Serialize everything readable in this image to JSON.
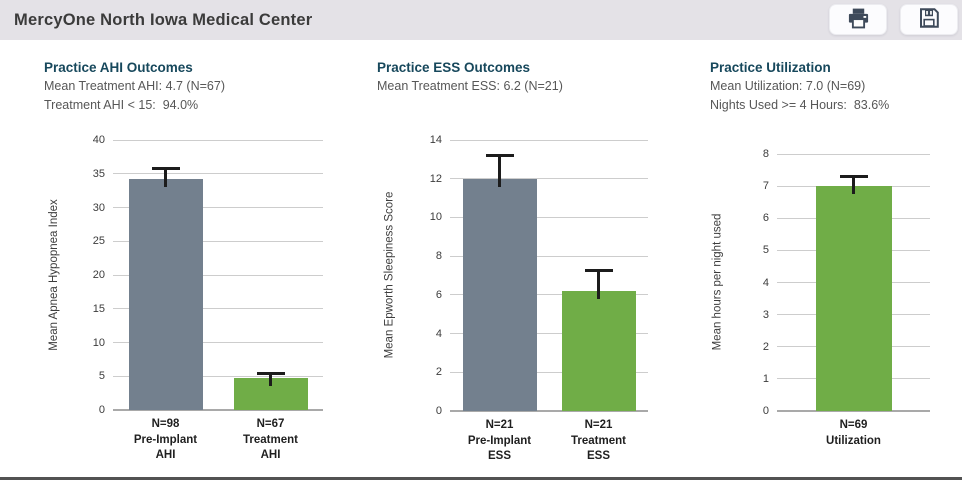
{
  "header": {
    "title": "MercyOne North Iowa Medical Center",
    "print_button": "print",
    "save_button": "save"
  },
  "panels": [
    {
      "title": "Practice AHI Outcomes",
      "subtitle1": "Mean Treatment AHI: 4.7 (N=67)",
      "subtitle2": "Treatment AHI < 15:  94.0%"
    },
    {
      "title": "Practice ESS Outcomes",
      "subtitle1": "Mean Treatment ESS: 6.2 (N=21)"
    },
    {
      "title": "Practice Utilization",
      "subtitle1": "Mean Utilization: 7.0 (N=69)",
      "subtitle2": "Nights Used >= 4 Hours:  83.6%"
    }
  ],
  "colors": {
    "header_bg": "#E4E2E7",
    "accent_navy": "#17485C",
    "bar_gray": "#73808E",
    "bar_green": "#70AD47",
    "gridline": "#CDCDCD",
    "error_bar": "#1C1C1C",
    "icon": "#3E4A5A"
  },
  "chart_data": [
    {
      "type": "bar",
      "title": "Practice AHI Outcomes",
      "ylabel": "Mean Apnea Hypopnea Index",
      "xlabel": "",
      "ylim": [
        0,
        40
      ],
      "ytick_step": 5,
      "grid": true,
      "legend": false,
      "categories": [
        [
          "N=98",
          "Pre-Implant",
          "AHI"
        ],
        [
          "N=67",
          "Treatment",
          "AHI"
        ]
      ],
      "values": [
        34.2,
        4.7
      ],
      "errors_plus": [
        1.4,
        0.5
      ],
      "bar_colors": [
        "#73808E",
        "#70AD47"
      ]
    },
    {
      "type": "bar",
      "title": "Practice ESS Outcomes",
      "ylabel": "Mean Epworth Sleepiness Score",
      "xlabel": "",
      "ylim": [
        0,
        14
      ],
      "ytick_step": 2,
      "grid": true,
      "legend": false,
      "categories": [
        [
          "N=21",
          "Pre-Implant",
          "ESS"
        ],
        [
          "N=21",
          "Treatment",
          "ESS"
        ]
      ],
      "values": [
        12.0,
        6.2
      ],
      "errors_plus": [
        1.1,
        1.0
      ],
      "bar_colors": [
        "#73808E",
        "#70AD47"
      ]
    },
    {
      "type": "bar",
      "title": "Practice Utilization",
      "ylabel": "Mean hours per night used",
      "xlabel": "",
      "ylim": [
        0,
        8
      ],
      "ytick_step": 1,
      "grid": true,
      "legend": false,
      "categories": [
        [
          "N=69",
          "Utilization"
        ]
      ],
      "values": [
        7.0
      ],
      "errors_plus": [
        0.25
      ],
      "bar_colors": [
        "#70AD47"
      ]
    }
  ]
}
